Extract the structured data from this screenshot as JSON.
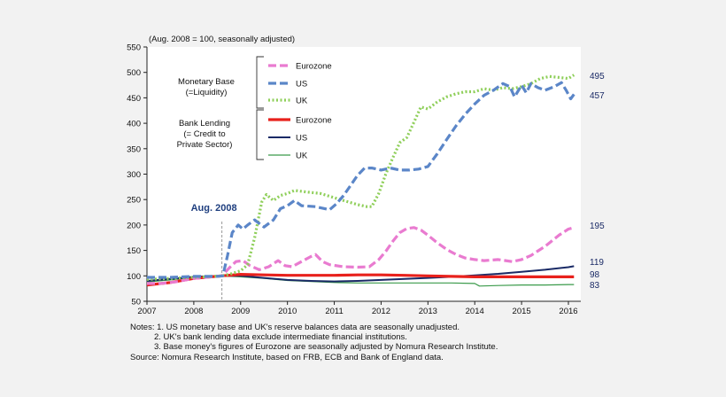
{
  "chart_data": {
    "type": "line",
    "subtitle": "(Aug. 2008 = 100, seasonally adjusted)",
    "ylim": [
      50,
      550
    ],
    "yticks": [
      50,
      100,
      150,
      200,
      250,
      300,
      350,
      400,
      450,
      500,
      550
    ],
    "xlim": [
      2007,
      2016.2
    ],
    "xticks": [
      2007,
      2008,
      2009,
      2010,
      2011,
      2012,
      2013,
      2014,
      2015,
      2016
    ],
    "grid": false,
    "marker": {
      "label": "Aug. 2008",
      "x": 2008.6,
      "color": "#1f3f7f"
    },
    "legend": {
      "placement": "top-left",
      "groups": [
        {
          "label_lines": [
            "Monetary Base",
            "(=Liquidity)"
          ],
          "entries": [
            "eurozone_mb",
            "us_mb",
            "uk_mb"
          ]
        },
        {
          "label_lines": [
            "Bank Lending",
            "(= Credit to",
            "Private Sector)"
          ],
          "entries": [
            "eurozone_bl",
            "us_bl",
            "uk_bl"
          ]
        }
      ]
    },
    "series": [
      {
        "id": "eurozone_mb",
        "name": "Eurozone",
        "group": "Monetary Base",
        "color": "#e97bd0",
        "style": "dashed",
        "width": 3.2,
        "end_label": "195",
        "points": [
          [
            2007,
            85
          ],
          [
            2007.3,
            85
          ],
          [
            2007.6,
            88
          ],
          [
            2008,
            95
          ],
          [
            2008.4,
            98
          ],
          [
            2008.6,
            100
          ],
          [
            2008.75,
            115
          ],
          [
            2008.9,
            128
          ],
          [
            2009.05,
            130
          ],
          [
            2009.2,
            120
          ],
          [
            2009.4,
            112
          ],
          [
            2009.6,
            118
          ],
          [
            2009.8,
            130
          ],
          [
            2009.95,
            120
          ],
          [
            2010.1,
            118
          ],
          [
            2010.3,
            128
          ],
          [
            2010.5,
            138
          ],
          [
            2010.6,
            142
          ],
          [
            2010.75,
            128
          ],
          [
            2010.9,
            122
          ],
          [
            2011.2,
            118
          ],
          [
            2011.5,
            117
          ],
          [
            2011.75,
            118
          ],
          [
            2011.95,
            132
          ],
          [
            2012.1,
            148
          ],
          [
            2012.25,
            168
          ],
          [
            2012.4,
            185
          ],
          [
            2012.55,
            193
          ],
          [
            2012.7,
            195
          ],
          [
            2012.85,
            190
          ],
          [
            2013.0,
            180
          ],
          [
            2013.2,
            165
          ],
          [
            2013.4,
            152
          ],
          [
            2013.6,
            142
          ],
          [
            2013.8,
            135
          ],
          [
            2014.0,
            132
          ],
          [
            2014.2,
            130
          ],
          [
            2014.5,
            132
          ],
          [
            2014.8,
            128
          ],
          [
            2015.0,
            132
          ],
          [
            2015.2,
            140
          ],
          [
            2015.5,
            158
          ],
          [
            2015.8,
            180
          ],
          [
            2016.0,
            192
          ],
          [
            2016.12,
            195
          ]
        ]
      },
      {
        "id": "us_mb",
        "name": "US",
        "group": "Monetary Base",
        "color": "#5b86c8",
        "style": "dashed",
        "width": 3.2,
        "end_label": "457",
        "points": [
          [
            2007,
            97
          ],
          [
            2007.5,
            97
          ],
          [
            2008,
            99
          ],
          [
            2008.5,
            99
          ],
          [
            2008.62,
            100
          ],
          [
            2008.72,
            140
          ],
          [
            2008.82,
            185
          ],
          [
            2008.95,
            200
          ],
          [
            2009.05,
            192
          ],
          [
            2009.15,
            200
          ],
          [
            2009.3,
            210
          ],
          [
            2009.5,
            196
          ],
          [
            2009.7,
            210
          ],
          [
            2009.85,
            232
          ],
          [
            2010.0,
            238
          ],
          [
            2010.15,
            248
          ],
          [
            2010.3,
            238
          ],
          [
            2010.6,
            236
          ],
          [
            2010.9,
            230
          ],
          [
            2011.05,
            242
          ],
          [
            2011.2,
            258
          ],
          [
            2011.35,
            278
          ],
          [
            2011.5,
            298
          ],
          [
            2011.65,
            312
          ],
          [
            2011.8,
            312
          ],
          [
            2012.0,
            308
          ],
          [
            2012.2,
            312
          ],
          [
            2012.4,
            308
          ],
          [
            2012.6,
            308
          ],
          [
            2012.8,
            310
          ],
          [
            2013.0,
            315
          ],
          [
            2013.2,
            340
          ],
          [
            2013.4,
            368
          ],
          [
            2013.6,
            395
          ],
          [
            2013.8,
            418
          ],
          [
            2014.0,
            438
          ],
          [
            2014.2,
            455
          ],
          [
            2014.4,
            465
          ],
          [
            2014.6,
            478
          ],
          [
            2014.75,
            472
          ],
          [
            2014.85,
            452
          ],
          [
            2015.0,
            475
          ],
          [
            2015.1,
            460
          ],
          [
            2015.2,
            478
          ],
          [
            2015.35,
            470
          ],
          [
            2015.5,
            465
          ],
          [
            2015.7,
            472
          ],
          [
            2015.85,
            480
          ],
          [
            2015.95,
            465
          ],
          [
            2016.05,
            448
          ],
          [
            2016.12,
            457
          ]
        ]
      },
      {
        "id": "uk_mb",
        "name": "UK",
        "group": "Monetary Base",
        "color": "#8fcf5a",
        "style": "dotted",
        "width": 3.2,
        "end_label": "495",
        "points": [
          [
            2007,
            93
          ],
          [
            2007.5,
            95
          ],
          [
            2008,
            97
          ],
          [
            2008.6,
            100
          ],
          [
            2008.8,
            104
          ],
          [
            2009.0,
            110
          ],
          [
            2009.15,
            122
          ],
          [
            2009.3,
            175
          ],
          [
            2009.45,
            245
          ],
          [
            2009.55,
            260
          ],
          [
            2009.7,
            248
          ],
          [
            2009.85,
            258
          ],
          [
            2010.0,
            262
          ],
          [
            2010.15,
            268
          ],
          [
            2010.4,
            265
          ],
          [
            2010.7,
            262
          ],
          [
            2010.95,
            255
          ],
          [
            2011.2,
            248
          ],
          [
            2011.5,
            240
          ],
          [
            2011.7,
            236
          ],
          [
            2011.8,
            236
          ],
          [
            2011.95,
            262
          ],
          [
            2012.1,
            300
          ],
          [
            2012.25,
            332
          ],
          [
            2012.4,
            362
          ],
          [
            2012.55,
            372
          ],
          [
            2012.7,
            402
          ],
          [
            2012.85,
            432
          ],
          [
            2013.0,
            428
          ],
          [
            2013.2,
            442
          ],
          [
            2013.4,
            452
          ],
          [
            2013.6,
            458
          ],
          [
            2013.8,
            462
          ],
          [
            2014.0,
            462
          ],
          [
            2014.2,
            468
          ],
          [
            2014.4,
            465
          ],
          [
            2014.6,
            470
          ],
          [
            2014.8,
            468
          ],
          [
            2015.0,
            472
          ],
          [
            2015.2,
            478
          ],
          [
            2015.4,
            488
          ],
          [
            2015.6,
            492
          ],
          [
            2015.8,
            490
          ],
          [
            2016.0,
            488
          ],
          [
            2016.12,
            495
          ]
        ]
      },
      {
        "id": "eurozone_bl",
        "name": "Eurozone",
        "group": "Bank Lending",
        "color": "#e8211c",
        "style": "solid",
        "width": 3.2,
        "end_label": "98",
        "points": [
          [
            2007,
            82
          ],
          [
            2007.5,
            87
          ],
          [
            2008,
            95
          ],
          [
            2008.6,
            100
          ],
          [
            2009,
            103
          ],
          [
            2009.5,
            102
          ],
          [
            2010,
            101
          ],
          [
            2010.5,
            101
          ],
          [
            2011,
            101
          ],
          [
            2011.5,
            102
          ],
          [
            2012,
            102
          ],
          [
            2012.5,
            101
          ],
          [
            2013,
            100
          ],
          [
            2013.5,
            99
          ],
          [
            2014,
            98
          ],
          [
            2014.5,
            98
          ],
          [
            2015,
            98
          ],
          [
            2015.5,
            98
          ],
          [
            2016,
            98
          ],
          [
            2016.12,
            98
          ]
        ]
      },
      {
        "id": "us_bl",
        "name": "US",
        "group": "Bank Lending",
        "color": "#1a2a66",
        "style": "solid",
        "width": 2,
        "end_label": "119",
        "points": [
          [
            2007,
            90
          ],
          [
            2007.5,
            94
          ],
          [
            2008,
            98
          ],
          [
            2008.6,
            100
          ],
          [
            2009,
            100
          ],
          [
            2009.5,
            96
          ],
          [
            2010,
            92
          ],
          [
            2010.5,
            90
          ],
          [
            2011,
            89
          ],
          [
            2011.5,
            90
          ],
          [
            2012,
            92
          ],
          [
            2012.5,
            94
          ],
          [
            2013,
            96
          ],
          [
            2013.5,
            98
          ],
          [
            2014,
            101
          ],
          [
            2014.5,
            104
          ],
          [
            2015,
            108
          ],
          [
            2015.5,
            112
          ],
          [
            2016,
            117
          ],
          [
            2016.12,
            119
          ]
        ]
      },
      {
        "id": "uk_bl",
        "name": "UK",
        "group": "Bank Lending",
        "color": "#3a9a4a",
        "style": "solid",
        "width": 1.2,
        "end_label": "83",
        "points": [
          [
            2007,
            88
          ],
          [
            2007.5,
            92
          ],
          [
            2008,
            97
          ],
          [
            2008.6,
            100
          ],
          [
            2009,
            98
          ],
          [
            2009.5,
            95
          ],
          [
            2010,
            91
          ],
          [
            2010.5,
            89
          ],
          [
            2011,
            87
          ],
          [
            2011.5,
            86
          ],
          [
            2012,
            86
          ],
          [
            2012.5,
            86
          ],
          [
            2013,
            86
          ],
          [
            2013.5,
            86
          ],
          [
            2014,
            85
          ],
          [
            2014.1,
            80
          ],
          [
            2014.5,
            81
          ],
          [
            2015,
            82
          ],
          [
            2015.5,
            82
          ],
          [
            2016,
            83
          ],
          [
            2016.12,
            83
          ]
        ]
      }
    ]
  },
  "notes": [
    "Notes: 1. US monetary base and UK's reserve balances data are seasonally unadjusted.",
    "2. UK's bank lending data exclude intermediate financial institutions.",
    "3. Base money's figures of Eurozone are seasonally adjusted by Nomura Research Institute.",
    "Source: Nomura Research Institute, based on FRB, ECB and Bank of England data."
  ]
}
